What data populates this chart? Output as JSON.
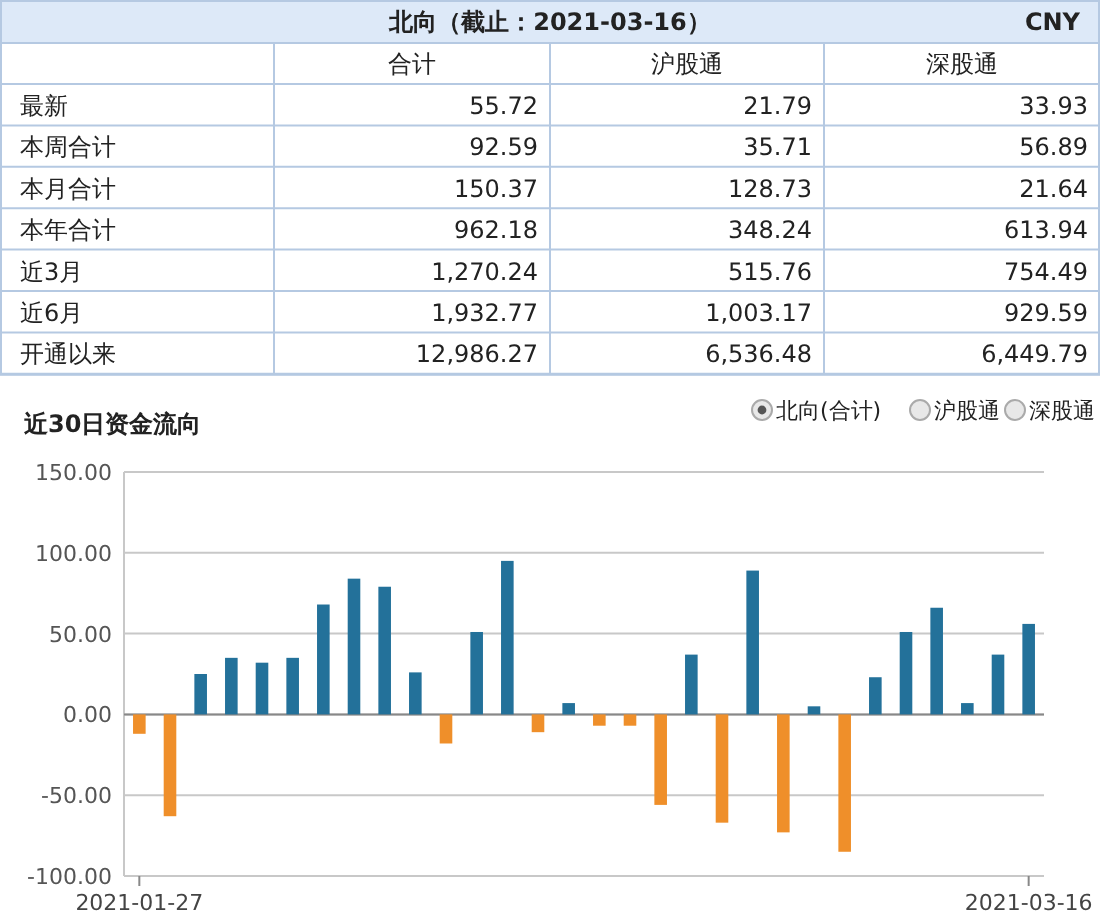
{
  "chart_data": [
    {
      "type": "other",
      "title": "北向（截止：2021-03-16）",
      "subtitle": "CNY",
      "categories": [
        "合计",
        "沪股通",
        "深股通"
      ],
      "y_categories": [
        "最新",
        "本周合计",
        "本月合计",
        "本年合计",
        "近3月",
        "近6月",
        "开通以来"
      ],
      "cell_labels": [
        [
          "55.72",
          "21.79",
          "33.93"
        ],
        [
          "92.59",
          "35.71",
          "56.89"
        ],
        [
          "150.37",
          "128.73",
          "21.64"
        ],
        [
          "962.18",
          "348.24",
          "613.94"
        ],
        [
          "1,270.24",
          "515.76",
          "754.49"
        ],
        [
          "1,932.77",
          "1,003.17",
          "929.59"
        ],
        [
          "12,986.27",
          "6,536.48",
          "6,449.79"
        ]
      ]
    },
    {
      "type": "bar",
      "title": "近30日资金流向",
      "annotations": [
        "北向(合计)",
        "沪股通",
        "深股通"
      ],
      "categories": [
        "2021-01-27",
        null,
        null,
        null,
        null,
        null,
        null,
        null,
        null,
        null,
        null,
        null,
        null,
        null,
        null,
        null,
        null,
        null,
        null,
        null,
        null,
        null,
        null,
        null,
        null,
        null,
        null,
        null,
        null,
        "2021-03-16"
      ],
      "values": [
        -12,
        -63,
        25,
        35,
        32,
        35,
        68,
        84,
        79,
        26,
        -18,
        51,
        95,
        -11,
        7,
        -7,
        -7,
        -56,
        37,
        -67,
        89,
        -73,
        5,
        -85,
        23,
        51,
        66,
        7,
        37,
        56
      ],
      "colors": [
        "#ef8f2a",
        "#ef8f2a",
        "#23719a",
        "#23719a",
        "#23719a",
        "#23719a",
        "#23719a",
        "#23719a",
        "#23719a",
        "#23719a",
        "#ef8f2a",
        "#23719a",
        "#23719a",
        "#ef8f2a",
        "#23719a",
        "#ef8f2a",
        "#ef8f2a",
        "#ef8f2a",
        "#23719a",
        "#ef8f2a",
        "#23719a",
        "#ef8f2a",
        "#23719a",
        "#ef8f2a",
        "#23719a",
        "#23719a",
        "#23719a",
        "#23719a",
        "#23719a",
        "#23719a"
      ],
      "ylim": [
        -100,
        150
      ],
      "yticks": [
        {
          "value": -100,
          "label": "-100.00"
        },
        {
          "value": -50,
          "label": "-50.00"
        },
        {
          "value": 0,
          "label": "0.00"
        },
        {
          "value": 50,
          "label": "50.00"
        },
        {
          "value": 100,
          "label": "100.00"
        },
        {
          "value": 150,
          "label": "150.00"
        }
      ],
      "grid": "y"
    }
  ]
}
